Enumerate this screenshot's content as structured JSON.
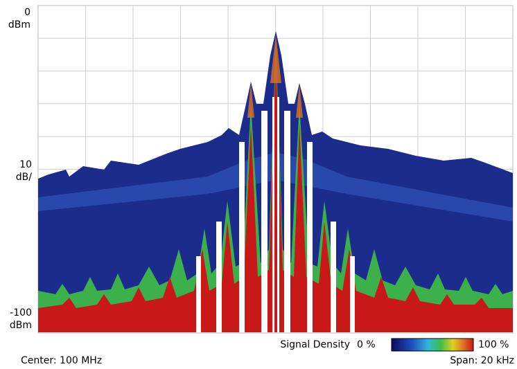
{
  "axis_labels": {
    "top_value": "0",
    "top_unit": "dBm",
    "scale_value": "10",
    "scale_unit": "dB/",
    "bottom_value": "-100",
    "bottom_unit": "dBm"
  },
  "legend": {
    "title": "Signal Density",
    "min_label": "0 %",
    "max_label": "100 %"
  },
  "footer": {
    "center": "Center: 100 MHz",
    "span": "Span: 20 kHz"
  }
}
